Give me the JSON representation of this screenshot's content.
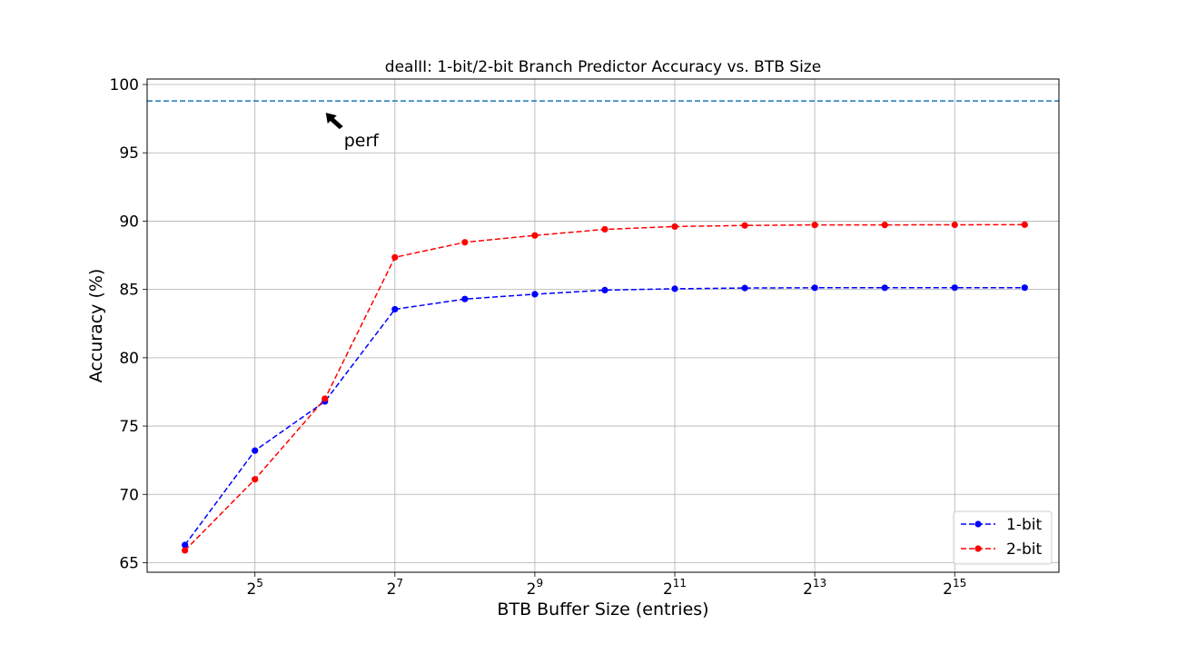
{
  "chart_data": {
    "type": "line",
    "title": "dealII: 1-bit/2-bit Branch Predictor Accuracy vs. BTB Size",
    "xlabel": "BTB Buffer Size (entries)",
    "ylabel": "Accuracy (%)",
    "x_scale": "log2",
    "x": [
      16,
      32,
      64,
      128,
      256,
      512,
      1024,
      2048,
      4096,
      8192,
      16384,
      32768,
      65536
    ],
    "x_ticks": [
      {
        "base": "2",
        "exp": "5",
        "value": 32
      },
      {
        "base": "2",
        "exp": "7",
        "value": 128
      },
      {
        "base": "2",
        "exp": "9",
        "value": 512
      },
      {
        "base": "2",
        "exp": "11",
        "value": 2048
      },
      {
        "base": "2",
        "exp": "13",
        "value": 8192
      },
      {
        "base": "2",
        "exp": "15",
        "value": 32768
      }
    ],
    "xlim": [
      11.0,
      92000
    ],
    "ylim": [
      64.3,
      100.4
    ],
    "y_ticks": [
      65,
      70,
      75,
      80,
      85,
      90,
      95,
      100
    ],
    "grid": true,
    "legend_position": "lower-right",
    "series": [
      {
        "name": "1-bit",
        "color": "#0000ff",
        "style": "dashed",
        "marker": "circle",
        "values": [
          66.3,
          73.2,
          76.8,
          83.55,
          84.3,
          84.65,
          84.95,
          85.05,
          85.1,
          85.12,
          85.12,
          85.13,
          85.13
        ]
      },
      {
        "name": "2-bit",
        "color": "#ff0000",
        "style": "dashed",
        "marker": "circle",
        "values": [
          65.9,
          71.1,
          77.0,
          87.35,
          88.45,
          88.95,
          89.4,
          89.6,
          89.68,
          89.72,
          89.72,
          89.73,
          89.74
        ]
      }
    ],
    "reference_line": {
      "y": 98.8,
      "color": "#1f77b4",
      "style": "dashed"
    },
    "annotation": {
      "text": "perf",
      "arrow": true,
      "x": 64,
      "y": 98.8
    }
  }
}
